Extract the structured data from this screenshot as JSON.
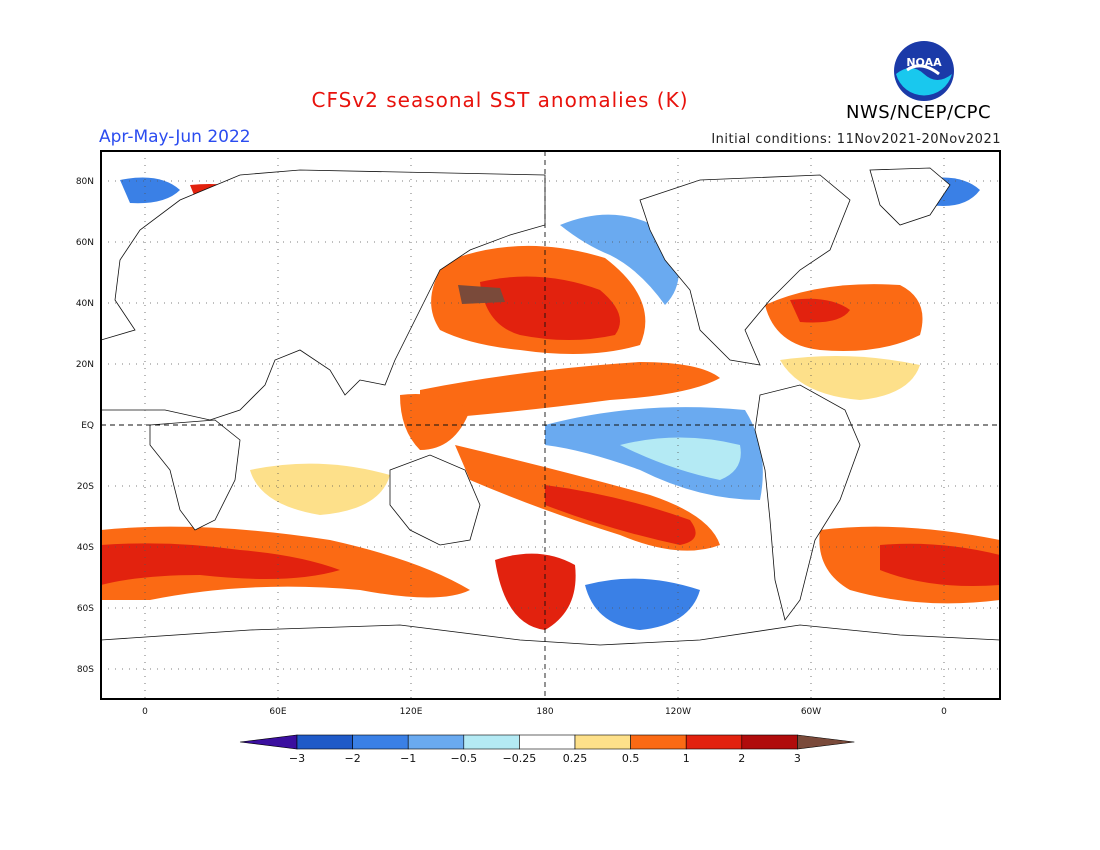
{
  "header": {
    "title": "CFSv2 seasonal SST anomalies (K)",
    "period": "Apr-May-Jun 2022",
    "initial_conditions": "Initial conditions: 11Nov2021-20Nov2021",
    "agency": "NWS/NCEP/CPC",
    "logo_text": "NOAA"
  },
  "map": {
    "lat_labels": [
      "80N",
      "60N",
      "40N",
      "20N",
      "EQ",
      "20S",
      "40S",
      "60S",
      "80S"
    ],
    "lon_labels": [
      "0",
      "60E",
      "120E",
      "180",
      "120W",
      "60W",
      "0"
    ]
  },
  "colorbar": {
    "labels": [
      "-3",
      "-2",
      "-1",
      "-0.5",
      "-0.25",
      "0.25",
      "0.5",
      "1",
      "2",
      "3"
    ],
    "colors": [
      "#3b0f9f",
      "#1f5ac8",
      "#3a80e6",
      "#6aaaf0",
      "#b4eaf4",
      "#ffffff",
      "#fde08a",
      "#fb6a14",
      "#e2220e",
      "#b00c0c",
      "#7a4a3a"
    ]
  },
  "colors": {
    "title": "#e8120c",
    "period": "#2b4cf0",
    "logo_blue": "#1b3aa8",
    "logo_cyan": "#19c8ee"
  }
}
